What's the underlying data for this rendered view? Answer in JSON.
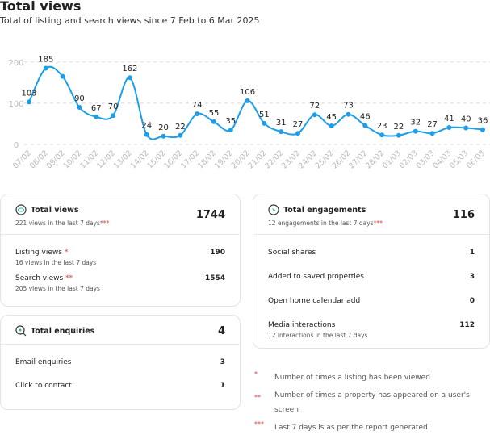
{
  "chart_data": {
    "type": "line",
    "title": "Total views",
    "subtitle": "Total of listing and search views since 7 Feb to 6 Mar 2025",
    "categories": [
      "07/02",
      "08/02",
      "09/02",
      "10/02",
      "11/02",
      "12/02",
      "13/02",
      "14/02",
      "15/02",
      "16/02",
      "17/02",
      "18/02",
      "19/02",
      "20/02",
      "21/02",
      "22/02",
      "23/02",
      "24/02",
      "25/02",
      "26/02",
      "27/02",
      "28/02",
      "01/03",
      "02/03",
      "03/03",
      "04/03",
      "05/03",
      "06/03"
    ],
    "values": [
      103,
      185,
      165,
      90,
      67,
      70,
      162,
      24,
      20,
      22,
      74,
      55,
      35,
      106,
      51,
      31,
      27,
      72,
      45,
      73,
      46,
      23,
      22,
      32,
      27,
      41,
      40,
      36
    ],
    "value_labels": [
      "103",
      "185",
      null,
      "90",
      "67",
      "70",
      "162",
      "24",
      "20",
      "22",
      "74",
      "55",
      "35",
      "106",
      "51",
      "31",
      "27",
      "72",
      "45",
      "73",
      "46",
      "23",
      "22",
      "32",
      "27",
      "41",
      "40",
      "36"
    ],
    "color": "#1e9ee8",
    "ylim": [
      0,
      225
    ],
    "yticks": [
      0,
      100,
      200
    ],
    "grid": true
  },
  "cards": [
    {
      "title": "Total views",
      "subtitle": "221 views in the last 7 days",
      "subtitle_mark": "***",
      "total": 1744,
      "rows": [
        {
          "label": "Listing views",
          "mark": "*",
          "note": "16 views in the last 7 days",
          "value": 190
        },
        {
          "label": "Search views",
          "mark": "**",
          "note": "205 views in the last 7 days",
          "value": 1554
        }
      ]
    },
    {
      "title": "Total enquiries",
      "total": 4,
      "rows": [
        {
          "label": "Email enquiries",
          "value": 3
        },
        {
          "label": "Click to contact",
          "value": 1
        }
      ]
    },
    {
      "title": "Total engagements",
      "subtitle": "12 engagements in the last 7 days",
      "subtitle_mark": "***",
      "total": 116,
      "rows": [
        {
          "label": "Social shares",
          "value": 1
        },
        {
          "label": "Added to saved properties",
          "value": 3
        },
        {
          "label": "Open home calendar add",
          "value": 0
        },
        {
          "label": "Media interactions",
          "note": "12 interactions in the last 7 days",
          "value": 112
        }
      ]
    }
  ],
  "footnotes": [
    {
      "mark": "*",
      "text": "Number of times a listing has been viewed"
    },
    {
      "mark": "**",
      "text": "Number of times a property has appeared on a user's screen"
    },
    {
      "mark": "***",
      "text": "Last 7 days is as per the report generated"
    }
  ]
}
